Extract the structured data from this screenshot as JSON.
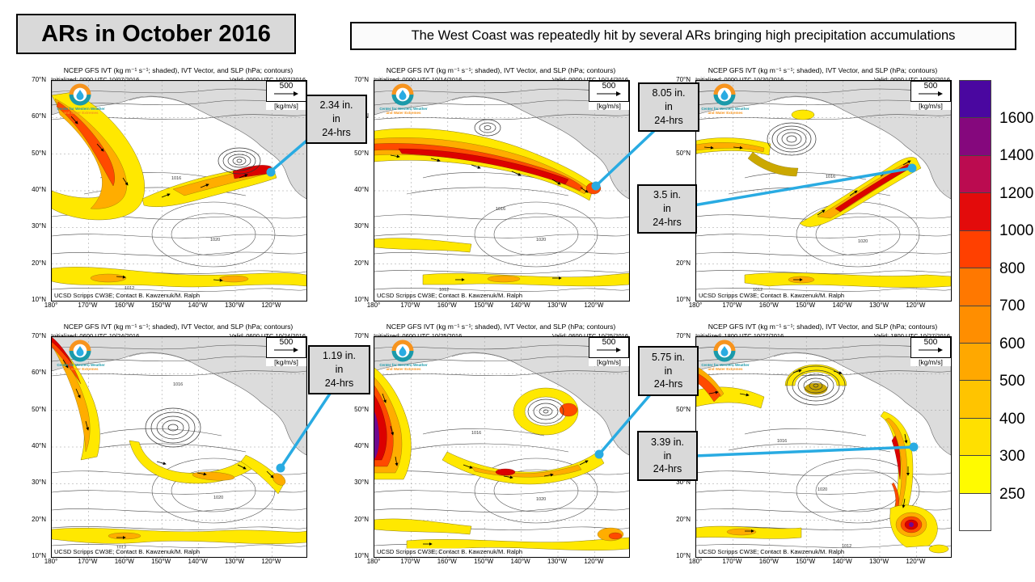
{
  "title": "ARs in October 2016",
  "subtitle": "The West Coast was repeatedly hit by several ARs bringing high precipitation accumulations",
  "accent_color": "#29ABE2",
  "map_header_title": "NCEP GFS IVT (kg m⁻¹ s⁻¹; shaded), IVT Vector, and SLP (hPa; contours)",
  "scale_label": "500",
  "scale_units": "[kg/m/s]",
  "attribution": "UCSD Scripps CW3E; Contact B. Kawzenuk/M. Ralph",
  "logo": {
    "line1": "Center for Western Weather",
    "line2": "and Water Extremes"
  },
  "lat_labels": [
    "70°N",
    "60°N",
    "50°N",
    "40°N",
    "30°N",
    "20°N",
    "10°N"
  ],
  "lon_labels": [
    "180°",
    "170°W",
    "160°W",
    "150°W",
    "140°W",
    "130°W",
    "120°W"
  ],
  "contour_labels": {
    "a": "1016",
    "b": "1020",
    "c": "1012"
  },
  "panels": [
    {
      "initialized": "Initialized: 0000 UTC 10/07/2016",
      "valid": "Valid: 0000 UTC 10/07/2016"
    },
    {
      "initialized": "Initialized: 0000 UTC 10/14/2016",
      "valid": "Valid: 0000 UTC 10/14/2016"
    },
    {
      "initialized": "Initialized: 0000 UTC 10/20/2016",
      "valid": "Valid: 0000 UTC 10/20/2016"
    },
    {
      "initialized": "Initialized: 0600 UTC 10/24/2016",
      "valid": "Valid: 0600 UTC 10/24/2016"
    },
    {
      "initialized": "Initialized: 0600 UTC 10/25/2016",
      "valid": "Valid: 0600 UTC 10/25/2016"
    },
    {
      "initialized": "Initialized: 1800 UTC 10/27/2016",
      "valid": "Valid: 1800 UTC 10/27/2016"
    }
  ],
  "callouts": [
    {
      "amount": "2.34 in.",
      "mid": "in",
      "period": "24-hrs"
    },
    {
      "amount": "8.05 in.",
      "mid": "in",
      "period": "24-hrs"
    },
    {
      "amount": "3.5 in.",
      "mid": "in",
      "period": "24-hrs"
    },
    {
      "amount": "1.19 in.",
      "mid": "in",
      "period": "24-hrs"
    },
    {
      "amount": "5.75 in.",
      "mid": "in",
      "period": "24-hrs"
    },
    {
      "amount": "3.39 in.",
      "mid": "in",
      "period": "24-hrs"
    }
  ],
  "colorbar": {
    "labels": [
      "1600",
      "1400",
      "1200",
      "1000",
      "800",
      "700",
      "600",
      "500",
      "400",
      "300",
      "250"
    ],
    "colors": [
      "#4A07A0",
      "#85087D",
      "#BB0B50",
      "#E30B0B",
      "#FF4000",
      "#FF7800",
      "#FF8E00",
      "#FFA800",
      "#FFC400",
      "#FFE000",
      "#FFFB00",
      "#FFFFFF"
    ]
  }
}
